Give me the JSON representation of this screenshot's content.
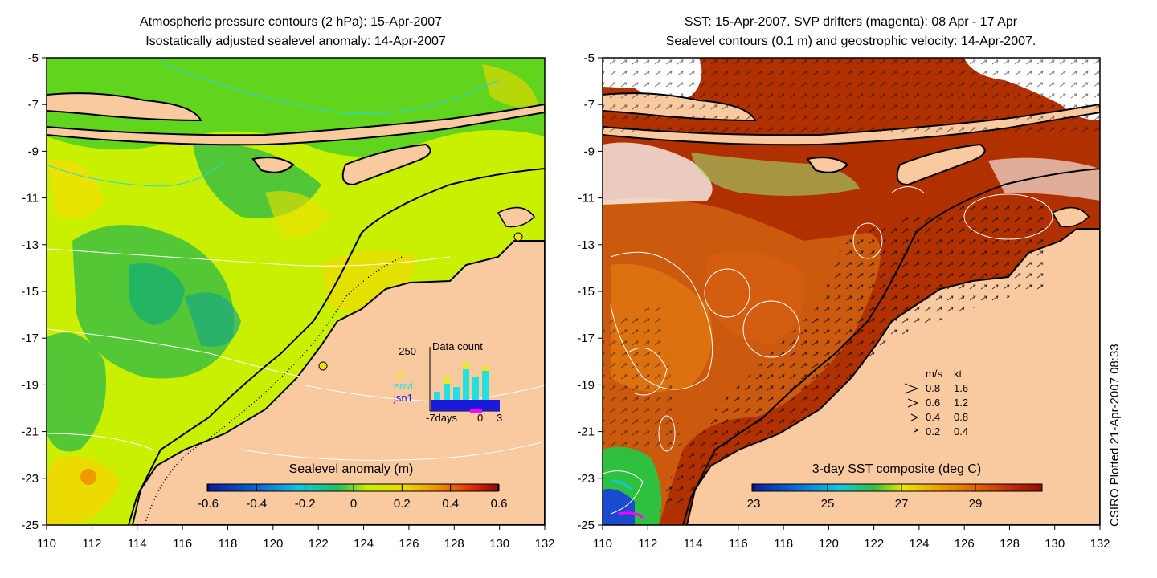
{
  "left_panel": {
    "title_line1": "Atmospheric pressure contours (2 hPa): 15-Apr-2007",
    "title_line2": "Isostatically adjusted sealevel anomaly: 14-Apr-2007",
    "lon_ticks": [
      "110",
      "112",
      "114",
      "116",
      "118",
      "120",
      "122",
      "124",
      "126",
      "128",
      "130",
      "132"
    ],
    "lat_ticks": [
      "-5",
      "-7",
      "-9",
      "-11",
      "-13",
      "-15",
      "-17",
      "-19",
      "-21",
      "-23",
      "-25"
    ],
    "colorbar": {
      "title": "Sealevel anomaly (m)",
      "ticks": [
        "-0.6",
        "-0.4",
        "-0.2",
        "0",
        "0.2",
        "0.4",
        "0.6"
      ]
    },
    "inset": {
      "title": "Data count",
      "y_max_label": "250",
      "x_labels": [
        "-7days",
        "0",
        "3"
      ],
      "legend": [
        {
          "label": "gfo",
          "color": "#e8e829"
        },
        {
          "label": "envi",
          "color": "#22e0e0"
        },
        {
          "label": "jsn1",
          "color": "#1a1ad8"
        }
      ]
    }
  },
  "right_panel": {
    "title_line1": "SST: 15-Apr-2007. SVP drifters (magenta): 08 Apr - 17 Apr",
    "title_line2": "Sealevel contours (0.1 m) and geostrophic velocity: 14-Apr-2007.",
    "lon_ticks": [
      "110",
      "112",
      "114",
      "116",
      "118",
      "120",
      "122",
      "124",
      "126",
      "128",
      "130",
      "132"
    ],
    "lat_ticks": [
      "-5",
      "-7",
      "-9",
      "-11",
      "-13",
      "-15",
      "-17",
      "-19",
      "-21",
      "-23",
      "-25"
    ],
    "colorbar": {
      "title": "3-day SST composite (deg C)",
      "ticks": [
        "23",
        "25",
        "27",
        "29"
      ]
    },
    "velocity_legend": {
      "header_ms": "m/s",
      "header_kt": "kt",
      "rows": [
        {
          "ms": "0.8",
          "kt": "1.6"
        },
        {
          "ms": "0.6",
          "kt": "1.2"
        },
        {
          "ms": "0.4",
          "kt": "0.8"
        },
        {
          "ms": "0.2",
          "kt": "0.4"
        }
      ]
    }
  },
  "credit": "CSIRO Plotted 21-Apr-2007 08:33",
  "colors": {
    "land": "#f9c9a0",
    "sla_base": "#c8f000",
    "sst_base": "#b03000",
    "drifter": "#ff00ff"
  }
}
